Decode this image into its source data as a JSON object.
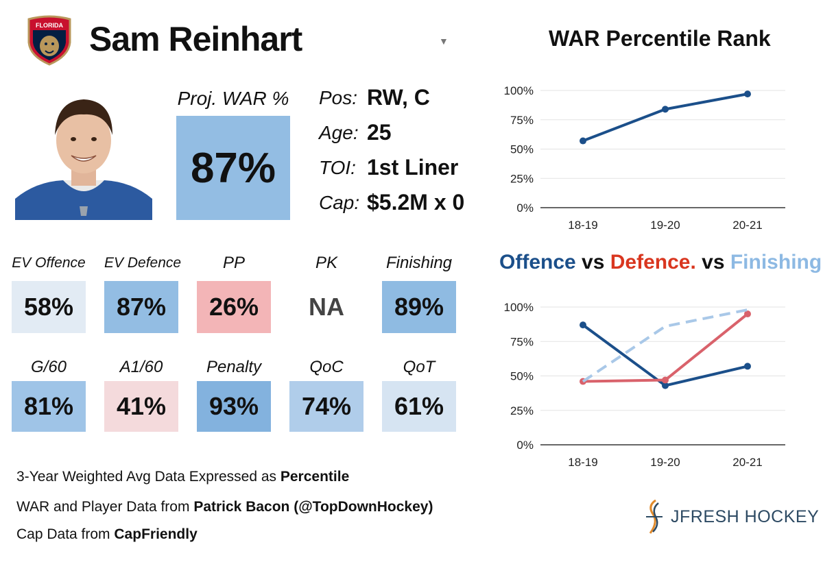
{
  "header": {
    "team_logo_text": "FLORIDA",
    "player_name": "Sam Reinhart",
    "dropdown_icon": "caret-down-icon"
  },
  "war": {
    "label": "Proj. WAR %",
    "value": "87%"
  },
  "info": [
    {
      "label": "Pos:",
      "value": "RW, C"
    },
    {
      "label": "Age:",
      "value": "25"
    },
    {
      "label": "TOI:",
      "value": "1st Liner"
    },
    {
      "label": "Cap:",
      "value": "$5.2M x 0"
    }
  ],
  "tiles_row1": [
    {
      "label": "EV Offence",
      "value": "58%",
      "color": "#e2ebf4"
    },
    {
      "label": "EV Defence",
      "value": "87%",
      "color": "#93bde3"
    },
    {
      "label": "PP",
      "value": "26%",
      "color": "#f3b5b7"
    },
    {
      "label": "PK",
      "value": "NA",
      "color": "#ffffff",
      "text_color": "#444444"
    },
    {
      "label": "Finishing",
      "value": "89%",
      "color": "#8fbbe2"
    }
  ],
  "tiles_row2": [
    {
      "label": "G/60",
      "value": "81%",
      "color": "#9fc4e7"
    },
    {
      "label": "A1/60",
      "value": "41%",
      "color": "#f4dadc"
    },
    {
      "label": "Penalty",
      "value": "93%",
      "color": "#83b2de"
    },
    {
      "label": "QoC",
      "value": "74%",
      "color": "#b0cdea"
    },
    {
      "label": "QoT",
      "value": "61%",
      "color": "#d6e4f2"
    }
  ],
  "footer": {
    "line1_text": "3-Year Weighted Avg Data Expressed as ",
    "line1_bold": "Percentile",
    "line2_text": "WAR and Player Data from ",
    "line2_bold": "Patrick Bacon (@TopDownHockey)",
    "line3_text": "Cap Data from ",
    "line3_bold": "CapFriendly"
  },
  "brand": {
    "name": "JFRESH HOCKEY"
  },
  "colors": {
    "dark_blue": "#1b4f8a",
    "red": "#d9626b",
    "light_blue": "#a9c8e8",
    "title_red": "#d9361f",
    "title_light": "#8db9e3"
  },
  "chart_titles": {
    "war": "WAR Percentile Rank",
    "split": {
      "a": "Offence",
      "vs1": " vs ",
      "b": "Defence.",
      "vs2": " vs ",
      "c": "Finishing"
    }
  },
  "chart_data": [
    {
      "type": "line",
      "title": "WAR Percentile Rank",
      "categories": [
        "18-19",
        "19-20",
        "20-21"
      ],
      "series": [
        {
          "name": "WAR",
          "values": [
            57,
            84,
            97
          ],
          "color": "#1b4f8a"
        }
      ],
      "ylim": [
        0,
        100
      ],
      "yticks": [
        "0%",
        "25%",
        "50%",
        "75%",
        "100%"
      ]
    },
    {
      "type": "line",
      "title": "Offence vs Defence. vs Finishing",
      "categories": [
        "18-19",
        "19-20",
        "20-21"
      ],
      "series": [
        {
          "name": "Offence",
          "values": [
            87,
            43,
            57
          ],
          "color": "#1b4f8a",
          "dashed": false
        },
        {
          "name": "Defence",
          "values": [
            46,
            47,
            95
          ],
          "color": "#d9626b",
          "dashed": false
        },
        {
          "name": "Finishing",
          "values": [
            46,
            86,
            98
          ],
          "color": "#a9c8e8",
          "dashed": true
        }
      ],
      "ylim": [
        0,
        100
      ],
      "yticks": [
        "0%",
        "25%",
        "50%",
        "75%",
        "100%"
      ]
    }
  ]
}
